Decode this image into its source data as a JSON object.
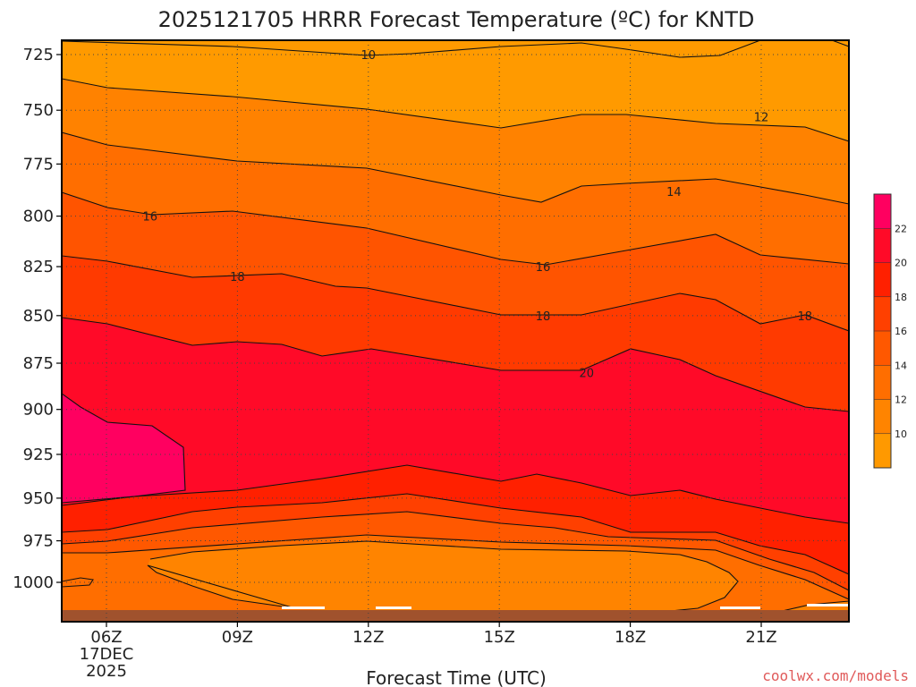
{
  "header": {
    "title": "2025121705 HRRR Forecast Temperature (ºC) for KNTD",
    "credit": "coolwx.com/models"
  },
  "chart_data": {
    "type": "contour",
    "title": "2025121705 HRRR Forecast Temperature (ºC) for KNTD",
    "xlabel": "Forecast Time (UTC)",
    "ylabel": "",
    "x_ticks": [
      "06Z",
      "09Z",
      "12Z",
      "15Z",
      "18Z",
      "21Z"
    ],
    "x_date_lines": [
      "17DEC",
      "2025"
    ],
    "y_ticks": [
      725,
      750,
      775,
      800,
      825,
      850,
      875,
      900,
      925,
      950,
      975,
      1000
    ],
    "y_inverted": true,
    "grid": "dotted",
    "colorbar": {
      "placement": "right",
      "ticks": [
        10,
        12,
        14,
        16,
        18,
        20,
        22
      ],
      "colors": [
        "#ff9900",
        "#ff8400",
        "#ff6e00",
        "#ff5800",
        "#ff4000",
        "#ff2000",
        "#ff0a28",
        "#ff0060"
      ]
    },
    "contour_labels": [
      {
        "value": "10",
        "time": "12Z",
        "pressure": 725
      },
      {
        "value": "12",
        "time": "21Z",
        "pressure": 753
      },
      {
        "value": "14",
        "time": "19Z",
        "pressure": 788
      },
      {
        "value": "16",
        "time": "07Z",
        "pressure": 800
      },
      {
        "value": "16",
        "time": "16Z",
        "pressure": 825
      },
      {
        "value": "18",
        "time": "09Z",
        "pressure": 830
      },
      {
        "value": "18",
        "time": "16Z",
        "pressure": 850
      },
      {
        "value": "18",
        "time": "22Z",
        "pressure": 850
      },
      {
        "value": "20",
        "time": "17Z",
        "pressure": 880
      }
    ]
  }
}
